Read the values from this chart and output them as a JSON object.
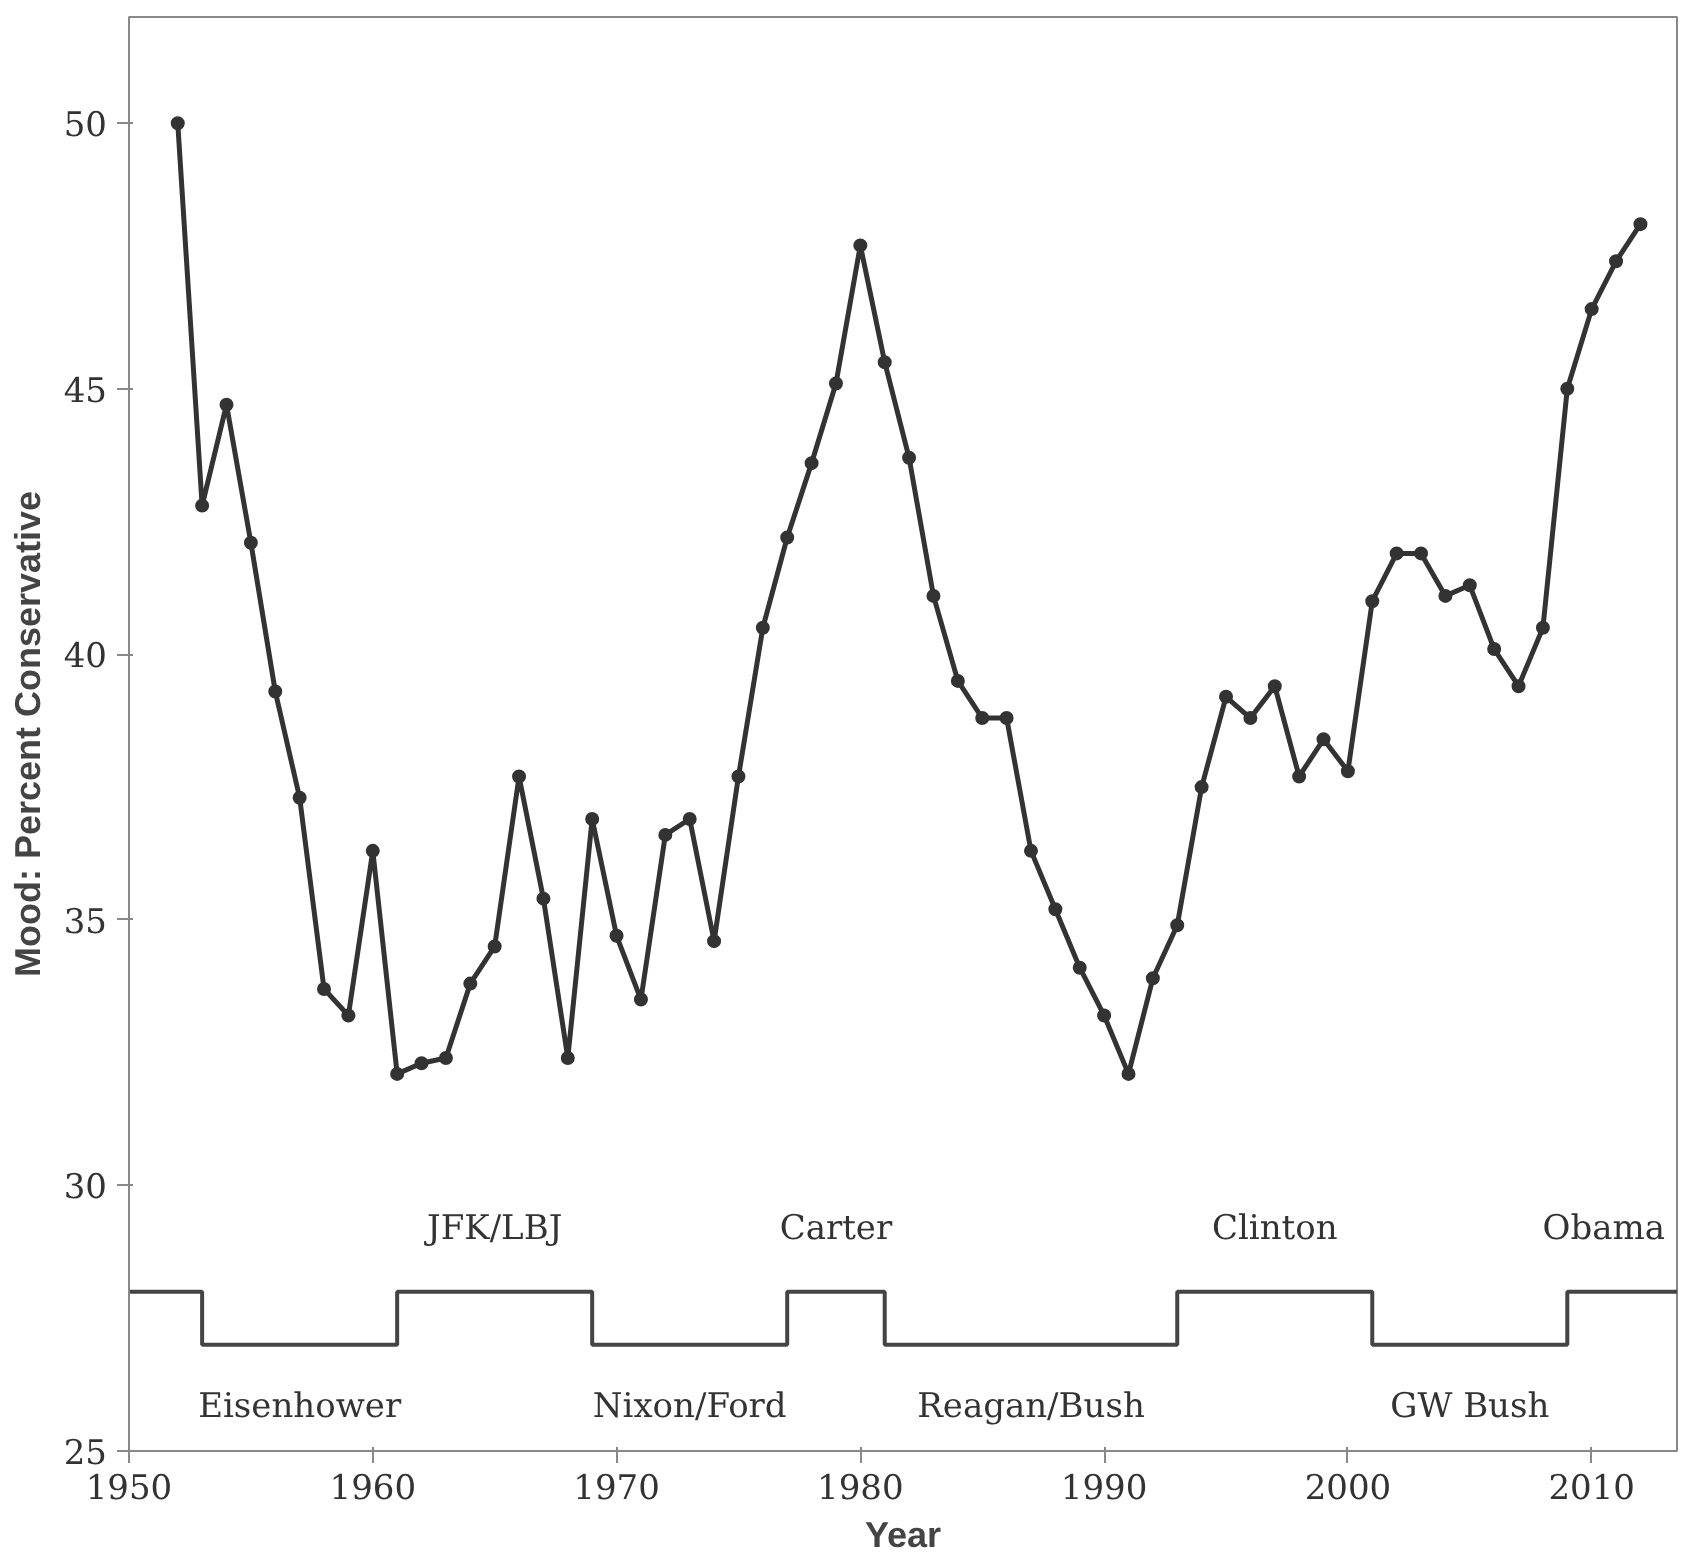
{
  "chart_data": {
    "type": "line",
    "xlabel": "Year",
    "ylabel": "Mood: Percent Conservative",
    "xlim": [
      1950,
      2013.5
    ],
    "ylim": [
      25,
      52
    ],
    "xticks": [
      1950,
      1960,
      1970,
      1980,
      1990,
      2000,
      2010
    ],
    "yticks": [
      25,
      30,
      35,
      40,
      45,
      50
    ],
    "grid": false,
    "marker": "circle",
    "line_style": "solid",
    "series": [
      {
        "color": "#333333",
        "x": [
          1952,
          1953,
          1954,
          1955,
          1956,
          1957,
          1958,
          1959,
          1960,
          1961,
          1962,
          1963,
          1964,
          1965,
          1966,
          1967,
          1968,
          1969,
          1970,
          1971,
          1972,
          1973,
          1974,
          1975,
          1976,
          1977,
          1978,
          1979,
          1980,
          1981,
          1982,
          1983,
          1984,
          1985,
          1986,
          1987,
          1988,
          1989,
          1990,
          1991,
          1992,
          1993,
          1994,
          1995,
          1996,
          1997,
          1998,
          1999,
          2000,
          2001,
          2002,
          2003,
          2004,
          2005,
          2006,
          2007,
          2008,
          2009,
          2010,
          2011,
          2012
        ],
        "values": [
          50.0,
          42.8,
          44.7,
          42.1,
          39.3,
          37.3,
          33.7,
          33.2,
          36.3,
          32.1,
          32.3,
          32.4,
          33.8,
          34.5,
          37.7,
          35.4,
          32.4,
          36.9,
          34.7,
          33.5,
          36.6,
          36.9,
          34.6,
          37.7,
          40.5,
          42.2,
          43.6,
          45.1,
          47.7,
          45.5,
          43.7,
          41.1,
          39.5,
          38.8,
          38.8,
          36.3,
          35.2,
          34.1,
          33.2,
          32.1,
          33.9,
          34.9,
          37.5,
          39.2,
          38.8,
          39.4,
          37.7,
          38.4,
          37.8,
          41.0,
          41.9,
          41.9,
          41.1,
          41.3,
          40.1,
          39.4,
          40.5,
          45.0,
          46.5,
          47.4,
          48.1
        ]
      },
      {
        "type": "step",
        "color": "#444444",
        "marker": "none",
        "x": [
          1950,
          1953,
          1961,
          1969,
          1977,
          1981,
          1993,
          2001,
          2009,
          2013.5
        ],
        "values": [
          28,
          27,
          28,
          27,
          28,
          27,
          28,
          27,
          28,
          28
        ]
      }
    ],
    "annotations": [
      "Eisenhower",
      "JFK/LBJ",
      "Nixon/Ford",
      "Carter",
      "Reagan/Bush",
      "Clinton",
      "GW Bush",
      "Obama"
    ]
  }
}
